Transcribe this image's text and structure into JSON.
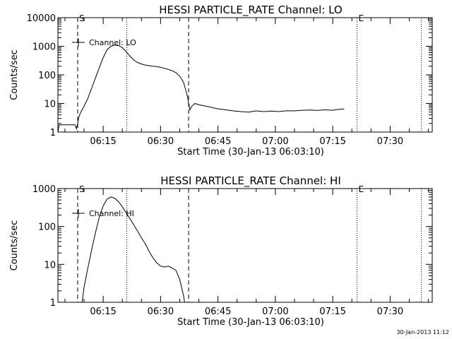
{
  "chart_data": [
    {
      "type": "line",
      "title": "HESSI PARTICLE_RATE Channel: LO",
      "xlabel": "Start Time (30-Jan-13 06:03:10)",
      "ylabel": "Counts/sec",
      "yscale": "log",
      "ylim": [
        1,
        10000
      ],
      "xlim": [
        "06:03:10",
        "07:41:00"
      ],
      "x_ticks": [
        "06:15",
        "06:30",
        "06:45",
        "07:00",
        "07:15",
        "07:30"
      ],
      "y_ticks": [
        "1",
        "10",
        "100",
        "1000",
        "10000"
      ],
      "legend": {
        "label": "Channel: LO",
        "placement": "top-left"
      },
      "markers": {
        "start_label": "S",
        "end_label": "E"
      },
      "vlines_dashed": [
        "06:08:20",
        "06:37:20"
      ],
      "vlines_dotted": [
        "06:21:10",
        "07:21:20",
        "07:38:10"
      ],
      "grid": false,
      "series": [
        {
          "values": [
            [
              "06:03:10",
              1
            ],
            [
              "06:03:30",
              1.8
            ],
            [
              "06:07:40",
              1.8
            ],
            [
              "06:08:00",
              1.3
            ],
            [
              "06:08:20",
              2
            ],
            [
              "06:08:40",
              3.5
            ],
            [
              "06:09:10",
              5
            ],
            [
              "06:10:00",
              8
            ],
            [
              "06:11:00",
              15
            ],
            [
              "06:12:00",
              35
            ],
            [
              "06:13:00",
              80
            ],
            [
              "06:14:00",
              180
            ],
            [
              "06:15:00",
              400
            ],
            [
              "06:16:00",
              750
            ],
            [
              "06:17:00",
              1000
            ],
            [
              "06:18:00",
              1100
            ],
            [
              "06:19:00",
              1050
            ],
            [
              "06:20:00",
              900
            ],
            [
              "06:21:00",
              650
            ],
            [
              "06:22:00",
              450
            ],
            [
              "06:23:00",
              330
            ],
            [
              "06:24:00",
              270
            ],
            [
              "06:25:00",
              240
            ],
            [
              "06:26:00",
              220
            ],
            [
              "06:27:00",
              210
            ],
            [
              "06:28:00",
              200
            ],
            [
              "06:29:00",
              195
            ],
            [
              "06:30:00",
              185
            ],
            [
              "06:31:00",
              170
            ],
            [
              "06:32:00",
              155
            ],
            [
              "06:33:00",
              140
            ],
            [
              "06:34:00",
              120
            ],
            [
              "06:35:00",
              90
            ],
            [
              "06:36:00",
              55
            ],
            [
              "06:37:00",
              18
            ],
            [
              "06:37:40",
              6
            ],
            [
              "06:38:10",
              8
            ],
            [
              "06:39:00",
              10
            ],
            [
              "06:40:00",
              9
            ],
            [
              "06:41:00",
              8.5
            ],
            [
              "06:43:00",
              7.5
            ],
            [
              "06:45:00",
              6.5
            ],
            [
              "06:47:00",
              6
            ],
            [
              "06:49:00",
              5.5
            ],
            [
              "06:51:00",
              5.2
            ],
            [
              "06:53:00",
              5.0
            ],
            [
              "06:55:00",
              5.5
            ],
            [
              "06:57:00",
              5.2
            ],
            [
              "06:59:00",
              5.4
            ],
            [
              "07:01:00",
              5.2
            ],
            [
              "07:03:00",
              5.6
            ],
            [
              "07:05:00",
              5.5
            ],
            [
              "07:07:00",
              5.8
            ],
            [
              "07:09:00",
              5.9
            ],
            [
              "07:11:00",
              5.7
            ],
            [
              "07:13:00",
              6.0
            ],
            [
              "07:15:00",
              5.8
            ],
            [
              "07:16:30",
              6.2
            ],
            [
              "07:18:00",
              6.4
            ]
          ]
        }
      ]
    },
    {
      "type": "line",
      "title": "HESSI PARTICLE_RATE Channel: HI",
      "xlabel": "Start Time (30-Jan-13 06:03:10)",
      "ylabel": "Counts/sec",
      "yscale": "log",
      "ylim": [
        1,
        1000
      ],
      "xlim": [
        "06:03:10",
        "07:41:00"
      ],
      "x_ticks": [
        "06:15",
        "06:30",
        "06:45",
        "07:00",
        "07:15",
        "07:30"
      ],
      "y_ticks": [
        "1",
        "10",
        "100",
        "1000"
      ],
      "legend": {
        "label": "Channel: HI",
        "placement": "top-left"
      },
      "markers": {
        "start_label": "S",
        "end_label": "E"
      },
      "vlines_dashed": [
        "06:08:20",
        "06:37:20"
      ],
      "vlines_dotted": [
        "06:21:10",
        "07:21:20",
        "07:38:10"
      ],
      "grid": false,
      "series": [
        {
          "values": [
            [
              "06:09:00",
              0.7
            ],
            [
              "06:09:30",
              1
            ],
            [
              "06:10:00",
              2.5
            ],
            [
              "06:11:00",
              8
            ],
            [
              "06:12:00",
              25
            ],
            [
              "06:13:00",
              70
            ],
            [
              "06:14:00",
              180
            ],
            [
              "06:15:00",
              350
            ],
            [
              "06:16:00",
              520
            ],
            [
              "06:17:00",
              600
            ],
            [
              "06:18:00",
              560
            ],
            [
              "06:19:00",
              450
            ],
            [
              "06:20:00",
              330
            ],
            [
              "06:21:00",
              230
            ],
            [
              "06:22:00",
              160
            ],
            [
              "06:23:00",
              110
            ],
            [
              "06:24:00",
              75
            ],
            [
              "06:25:00",
              50
            ],
            [
              "06:26:00",
              35
            ],
            [
              "06:27:00",
              22
            ],
            [
              "06:28:00",
              15
            ],
            [
              "06:29:00",
              11
            ],
            [
              "06:30:00",
              9
            ],
            [
              "06:31:00",
              8.5
            ],
            [
              "06:32:00",
              9
            ],
            [
              "06:33:00",
              8
            ],
            [
              "06:34:00",
              7
            ],
            [
              "06:35:00",
              4
            ],
            [
              "06:36:00",
              1.5
            ],
            [
              "06:36:30",
              0.7
            ]
          ]
        }
      ]
    }
  ],
  "footer": {
    "timestamp": "30-Jan-2013 11:12"
  }
}
